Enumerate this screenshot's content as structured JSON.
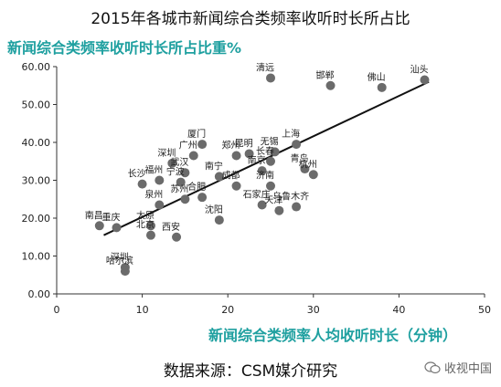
{
  "page": {
    "title": "2015年各城市新闻综合类频率收听时长所占比",
    "source": "数据来源：CSM媒介研究",
    "watermark": "收视中国"
  },
  "colors": {
    "inner_title": "#1fa0a0",
    "point": "#6b6b6b",
    "trend": "#111111",
    "axis": "#333333"
  },
  "chart_data": {
    "type": "scatter",
    "title": "新闻综合类频率收听时长所占比重%",
    "xlabel": "新闻综合类频率人均收听时长（分钟）",
    "ylabel": "",
    "xlim": [
      0,
      50
    ],
    "ylim": [
      0,
      60
    ],
    "x_ticks": [
      "0",
      "10",
      "20",
      "30",
      "40",
      "50"
    ],
    "y_ticks": [
      "0.00",
      "10.00",
      "20.00",
      "30.00",
      "40.00",
      "50.00",
      "60.00"
    ],
    "grid": false,
    "trendline": {
      "x": [
        5.5,
        43.5
      ],
      "y": [
        15.5,
        56.0
      ]
    },
    "points": [
      {
        "label": "南昌",
        "x": 5,
        "y": 18
      },
      {
        "label": "重庆",
        "x": 7,
        "y": 17.5
      },
      {
        "label": "长沙",
        "x": 10,
        "y": 29
      },
      {
        "label": "福州",
        "x": 12,
        "y": 30
      },
      {
        "label": "泉州",
        "x": 12,
        "y": 23.5
      },
      {
        "label": "太原",
        "x": 11,
        "y": 18
      },
      {
        "label": "北京",
        "x": 11,
        "y": 15.5
      },
      {
        "label": "西安",
        "x": 14,
        "y": 15
      },
      {
        "label": "深圳",
        "x": 8,
        "y": 7
      },
      {
        "label": "哈尔滨",
        "x": 8,
        "y": 6
      },
      {
        "label": "广州",
        "x": 16,
        "y": 36.5
      },
      {
        "label": "深圳",
        "x": 13.5,
        "y": 34.5
      },
      {
        "label": "武汉",
        "x": 15,
        "y": 32
      },
      {
        "label": "宁波",
        "x": 14.5,
        "y": 29.5
      },
      {
        "label": "苏州",
        "x": 15,
        "y": 25
      },
      {
        "label": "合肥",
        "x": 17,
        "y": 25.5
      },
      {
        "label": "南宁",
        "x": 19,
        "y": 31
      },
      {
        "label": "成都",
        "x": 21,
        "y": 28.5
      },
      {
        "label": "沈阳",
        "x": 19,
        "y": 19.5
      },
      {
        "label": "厦门",
        "x": 17,
        "y": 39.5
      },
      {
        "label": "郑州",
        "x": 21,
        "y": 36.5
      },
      {
        "label": "昆明",
        "x": 22.5,
        "y": 37
      },
      {
        "label": "长春",
        "x": 25,
        "y": 35
      },
      {
        "label": "无锡",
        "x": 25.5,
        "y": 37.5
      },
      {
        "label": "南京",
        "x": 24,
        "y": 32.5
      },
      {
        "label": "济南",
        "x": 25,
        "y": 28.5
      },
      {
        "label": "石家庄",
        "x": 24,
        "y": 23.5
      },
      {
        "label": "天津",
        "x": 26,
        "y": 22
      },
      {
        "label": "上海",
        "x": 28,
        "y": 39.5
      },
      {
        "label": "青岛",
        "x": 29,
        "y": 33
      },
      {
        "label": "杭州",
        "x": 30,
        "y": 31.5
      },
      {
        "label": "乌鲁木齐",
        "x": 28,
        "y": 23
      },
      {
        "label": "清远",
        "x": 25,
        "y": 57
      },
      {
        "label": "邯郸",
        "x": 32,
        "y": 55
      },
      {
        "label": "佛山",
        "x": 38,
        "y": 54.5
      },
      {
        "label": "汕头",
        "x": 43,
        "y": 56.5
      }
    ]
  }
}
